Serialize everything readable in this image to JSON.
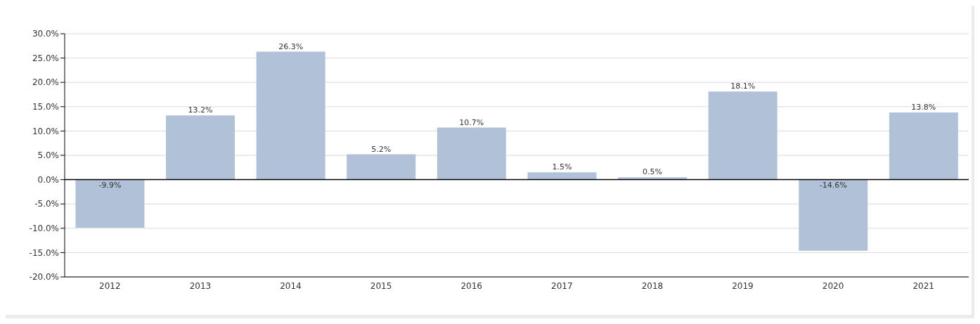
{
  "chart_data": {
    "type": "bar",
    "categories": [
      "2012",
      "2013",
      "2014",
      "2015",
      "2016",
      "2017",
      "2018",
      "2019",
      "2020",
      "2021"
    ],
    "values": [
      -9.9,
      13.2,
      26.3,
      5.2,
      10.7,
      1.5,
      0.5,
      18.1,
      -14.6,
      13.8
    ],
    "value_labels": [
      "-9.9%",
      "13.2%",
      "26.3%",
      "5.2%",
      "10.7%",
      "1.5%",
      "0.5%",
      "18.1%",
      "-14.6%",
      "13.8%"
    ],
    "color": "#b0c1d8",
    "ylim": [
      -20,
      30
    ],
    "yticks": [
      {
        "value": -20,
        "label": "-20.0%"
      },
      {
        "value": -15,
        "label": "-15.0%"
      },
      {
        "value": -10,
        "label": "-10.0%"
      },
      {
        "value": -5,
        "label": "-5.0%"
      },
      {
        "value": 0,
        "label": "0.0%"
      },
      {
        "value": 5,
        "label": "5.0%"
      },
      {
        "value": 10,
        "label": "10.0%"
      },
      {
        "value": 15,
        "label": "15.0%"
      },
      {
        "value": 20,
        "label": "20.0%"
      },
      {
        "value": 25,
        "label": "25.0%"
      },
      {
        "value": 30,
        "label": "30.0%"
      }
    ],
    "grid": "y"
  }
}
